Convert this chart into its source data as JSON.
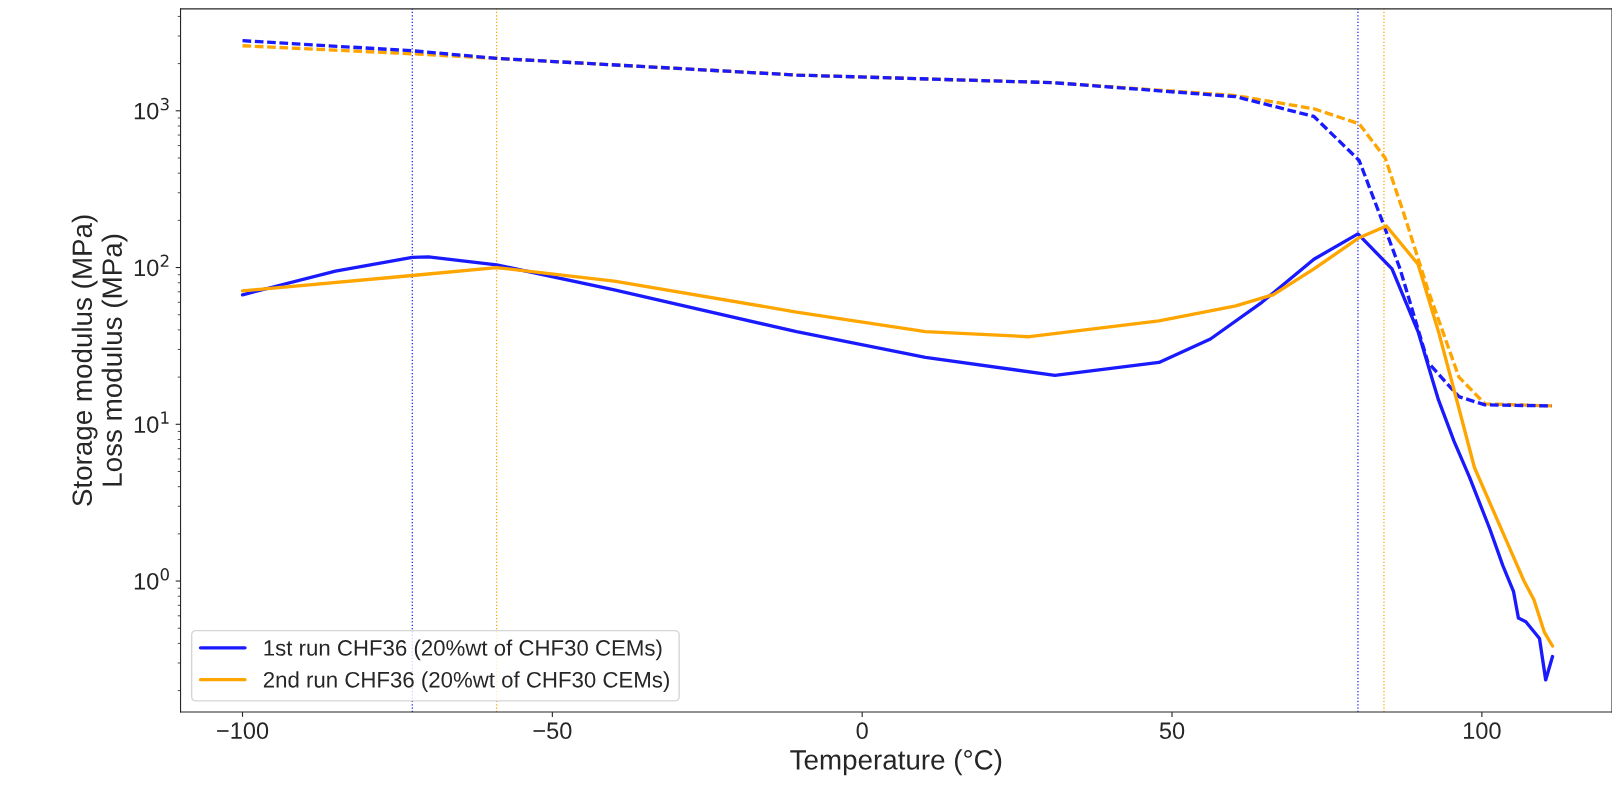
{
  "chart_data": {
    "type": "line",
    "xlabel": "Temperature (°C)",
    "ylabel": "Storage modulus (MPa)\nLoss modulus (MPa)",
    "xlim": [
      -110,
      121
    ],
    "xticks": [
      {
        "value": -100,
        "label": "−100"
      },
      {
        "value": -50,
        "label": "−50"
      },
      0,
      50,
      100
    ],
    "ylim": [
      0.146,
      4470
    ],
    "log": "y",
    "yticks": [
      {
        "value": 1,
        "label": "10$^{0}$"
      },
      {
        "value": 10,
        "label": "10$^{1}$"
      },
      {
        "value": 100,
        "label": "10$^{2}$"
      },
      {
        "value": 1000,
        "label": "10$^{3}$"
      }
    ],
    "grid": false,
    "legend": "bottom left",
    "series": [
      {
        "color": "#ffa500",
        "line_style": "dashed",
        "x": [
          -100,
          -72.6,
          -59,
          -10.6,
          31,
          60.3,
          72.9,
          80.2,
          84.4,
          87.6,
          91.3,
          96.3,
          100.5,
          111.3
        ],
        "values": [
          2600,
          2310,
          2160,
          1690,
          1510,
          1250,
          1030,
          826,
          500,
          209,
          72,
          20,
          13.5,
          13.1
        ]
      },
      {
        "color": "#1a1aff",
        "line_style": "dashed",
        "x": [
          -100,
          -72.6,
          -59,
          -10.6,
          31,
          60.3,
          72.9,
          80.2,
          83.7,
          86.8,
          91.3,
          96.3,
          100.5,
          111.3
        ],
        "values": [
          2800,
          2415,
          2160,
          1690,
          1510,
          1230,
          920,
          482,
          209,
          98,
          24.8,
          15,
          13.3,
          13.1
        ]
      },
      {
        "name": "1st run CHF36 (20%wt of CHF30 CEMs)",
        "color": "#1a1aff",
        "line_style": "solid",
        "x": [
          -100,
          -85,
          -72.6,
          -70,
          -59,
          -40,
          -10.6,
          10.2,
          31.1,
          47.9,
          56.2,
          64.5,
          72.9,
          80,
          85.5,
          89.7,
          93,
          95.5,
          98,
          101.3,
          103.4,
          105.1,
          105.9,
          107.1,
          109.3,
          110.3,
          111.4
        ],
        "values": [
          67,
          95,
          116,
          117,
          104,
          72,
          39,
          26.7,
          20.5,
          24.8,
          35,
          60,
          113,
          164,
          98,
          39,
          14.3,
          7.8,
          4.6,
          2.14,
          1.25,
          0.86,
          0.58,
          0.55,
          0.43,
          0.234,
          0.33
        ]
      },
      {
        "name": "2nd run CHF36 (20%wt of CHF30 CEMs)",
        "color": "#ffa500",
        "line_style": "solid",
        "x": [
          -100,
          -72.6,
          -59,
          -40,
          -10.6,
          10.2,
          27,
          47.9,
          60.3,
          66.3,
          72.9,
          80.2,
          84.6,
          89.7,
          93,
          95.9,
          98.8,
          103.9,
          106.8,
          108.4,
          110.1,
          111.4
        ],
        "values": [
          71,
          89,
          100,
          82,
          52,
          39,
          36.2,
          45.7,
          57,
          67,
          98,
          155,
          184,
          105,
          39,
          14.5,
          5.3,
          1.83,
          1.0,
          0.76,
          0.47,
          0.385
        ]
      }
    ],
    "ref_lines": [
      {
        "axis": "x",
        "value": -72.6,
        "color": "#1a1aff",
        "line_style": "dotted"
      },
      {
        "axis": "x",
        "value": -59,
        "color": "#ffa500",
        "line_style": "dotted"
      },
      {
        "axis": "x",
        "value": 80,
        "color": "#1a1aff",
        "line_style": "dotted"
      },
      {
        "axis": "x",
        "value": 84.2,
        "color": "#ffa500",
        "line_style": "dotted"
      }
    ]
  }
}
